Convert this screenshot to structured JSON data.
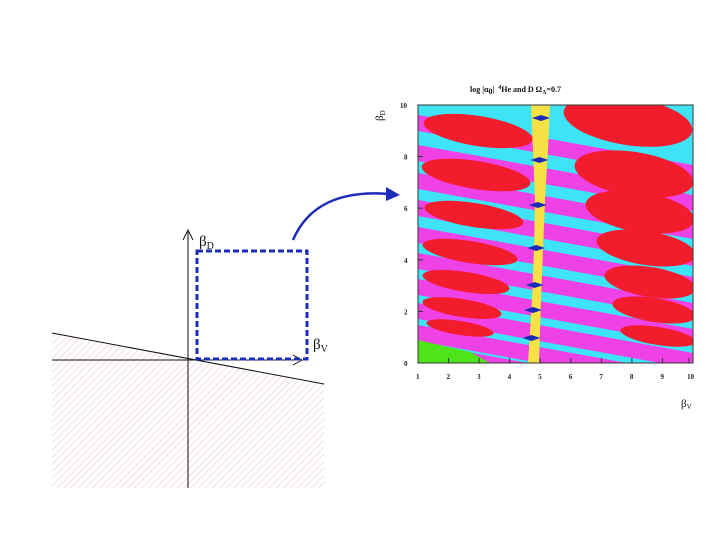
{
  "sketch": {
    "y_axis_symbol": "β",
    "y_axis_sub": "D",
    "x_axis_symbol": "β",
    "x_axis_sub": "V"
  },
  "plot": {
    "title_main": "log |α",
    "title_alpha_sub": "0",
    "title_pipe": "|",
    "title_iso_sup": "4",
    "title_rest": "He and D  Ω",
    "title_omega_sub": "Λ",
    "title_value": "=0.7",
    "y_label_symbol": "β",
    "y_label_sub": "D",
    "x_label_symbol": "β",
    "x_label_sub": "V",
    "x_ticks": [
      "1",
      "2",
      "3",
      "4",
      "5",
      "6",
      "7",
      "8",
      "9",
      "10"
    ],
    "y_ticks": [
      "0",
      "2",
      "4",
      "6",
      "8",
      "10"
    ]
  },
  "colors": {
    "cyan": "#3fe3f6",
    "magenta": "#ee42e6",
    "red": "#f21c2c",
    "yellow": "#f6e244",
    "navy": "#1c2cb8",
    "green": "#4ee41c",
    "arrow": "#1c2cb8",
    "dashed_box": "#1c2cb8"
  }
}
